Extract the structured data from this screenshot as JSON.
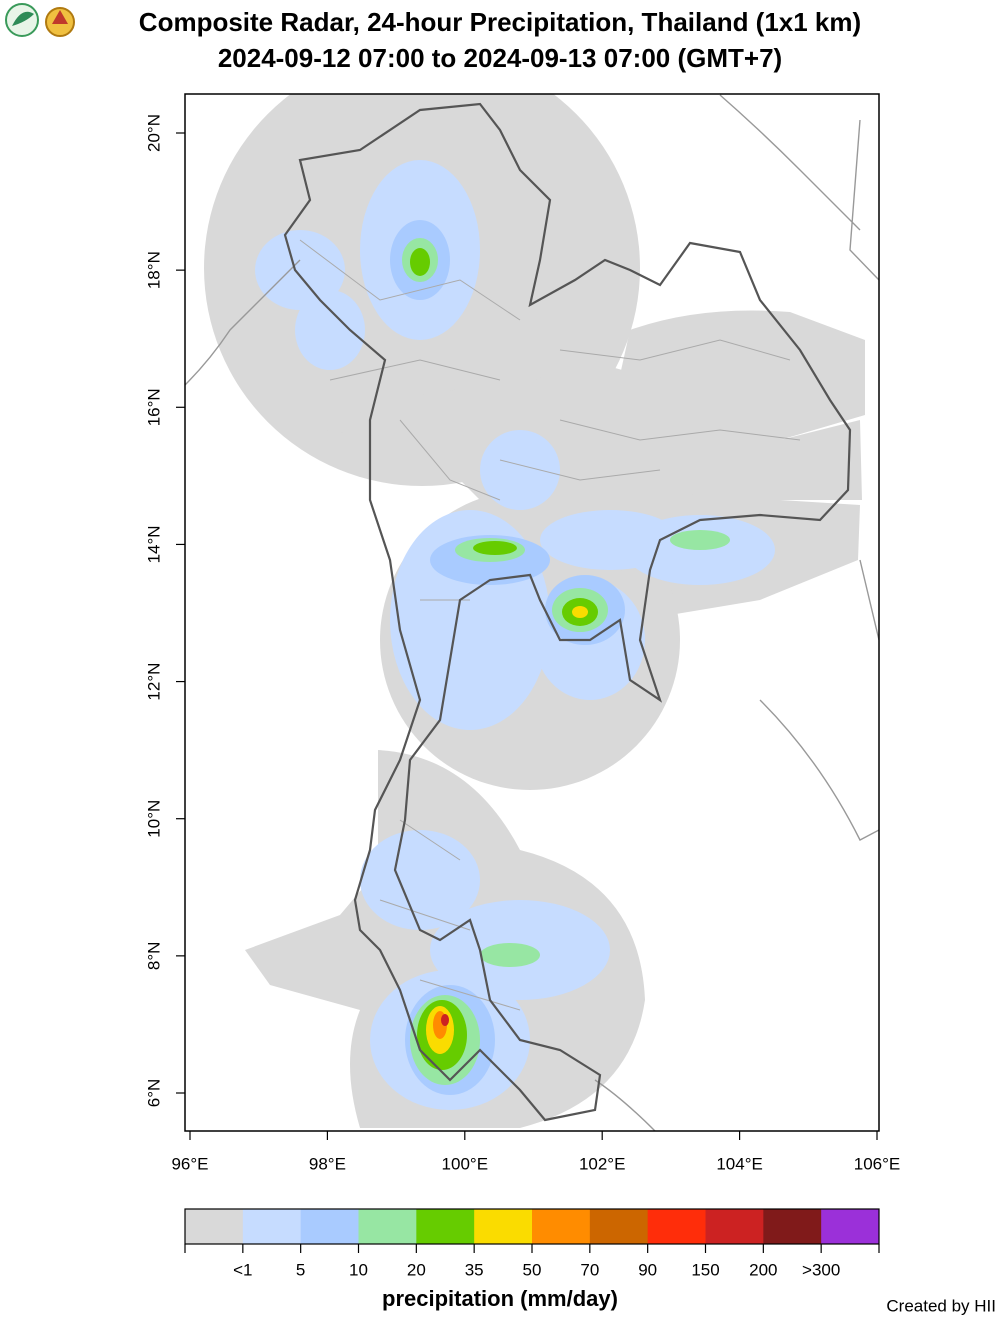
{
  "header": {
    "title": "Composite Radar, 24-hour Precipitation, Thailand (1x1 km)",
    "subtitle": "2024-09-12 07:00 to 2024-09-13 07:00 (GMT+7)"
  },
  "map": {
    "lon_labels": [
      "96°E",
      "98°E",
      "100°E",
      "102°E",
      "104°E",
      "106°E"
    ],
    "lat_labels": [
      "6°N",
      "8°N",
      "10°N",
      "12°N",
      "14°N",
      "16°N",
      "18°N",
      "20°N"
    ]
  },
  "colorbar": {
    "colors": [
      "#d9d9d9",
      "#c6dcff",
      "#a9cbff",
      "#97e6a3",
      "#66cc00",
      "#fadc00",
      "#ff8c00",
      "#cc6600",
      "#ff2d0a",
      "#cc2222",
      "#801a1a",
      "#9b30d9"
    ],
    "labels": [
      "<1",
      "5",
      "10",
      "20",
      "35",
      "50",
      "70",
      "90",
      "150",
      "200",
      ">300"
    ],
    "title": "precipitation (mm/day)"
  },
  "footer": {
    "credit": "Created by HII"
  }
}
